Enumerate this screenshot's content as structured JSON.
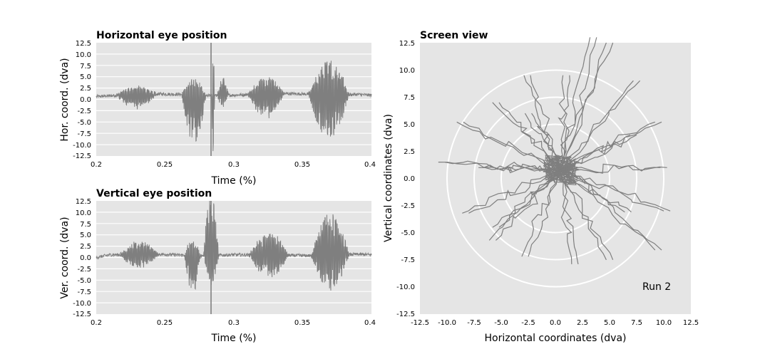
{
  "chart_data": [
    {
      "id": "horizontal",
      "type": "line",
      "title": "Horizontal eye position",
      "xlabel": "Time (%)",
      "ylabel": "Hor. coord. (dva)",
      "xlim": [
        0.2,
        0.4
      ],
      "ylim": [
        -12.5,
        12.5
      ],
      "xticks": [
        "0.2",
        "0.25",
        "0.3",
        "0.35",
        "0.4"
      ],
      "yticks": [
        "12.5",
        "10.0",
        "7.5",
        "5.0",
        "2.5",
        "0.0",
        "-2.5",
        "-5.0",
        "-7.5",
        "-10.0",
        "-12.5"
      ],
      "grid": "horizontal",
      "line_color": "#7f7f7f",
      "bg_color": "#e5e5e5",
      "baseline": [
        [
          0.2,
          0.6
        ],
        [
          0.215,
          0.9
        ],
        [
          0.245,
          1.2
        ],
        [
          0.26,
          1.1
        ],
        [
          0.285,
          0.8
        ],
        [
          0.305,
          1.0
        ],
        [
          0.33,
          1.3
        ],
        [
          0.35,
          1.2
        ],
        [
          0.37,
          0.9
        ],
        [
          0.39,
          1.1
        ],
        [
          0.4,
          0.9
        ]
      ],
      "bursts": [
        {
          "t0": 0.214,
          "t1": 0.244,
          "amp": 2.5,
          "skew": -0.6
        },
        {
          "t0": 0.262,
          "t1": 0.28,
          "amp": 7.5,
          "skew": -1.0
        },
        {
          "t0": 0.284,
          "t1": 0.286,
          "amp": 12.5,
          "skew": 0
        },
        {
          "t0": 0.288,
          "t1": 0.296,
          "amp": 3.5,
          "skew": 0.3
        },
        {
          "t0": 0.31,
          "t1": 0.337,
          "amp": 4.5,
          "skew": -0.4
        },
        {
          "t0": 0.354,
          "t1": 0.384,
          "amp": 9.0,
          "skew": -0.2
        }
      ]
    },
    {
      "id": "vertical",
      "type": "line",
      "title": "Vertical eye position",
      "xlabel": "Time (%)",
      "ylabel": "Ver. coord. (dva)",
      "xlim": [
        0.2,
        0.4
      ],
      "ylim": [
        -12.5,
        12.5
      ],
      "xticks": [
        "0.2",
        "0.25",
        "0.3",
        "0.35",
        "0.4"
      ],
      "yticks": [
        "12.5",
        "10.0",
        "7.5",
        "5.0",
        "2.5",
        "0.0",
        "-2.5",
        "-5.0",
        "-7.5",
        "-10.0",
        "-12.5"
      ],
      "grid": "horizontal",
      "line_color": "#7f7f7f",
      "bg_color": "#e5e5e5",
      "baseline": [
        [
          0.2,
          0.0
        ],
        [
          0.21,
          0.6
        ],
        [
          0.25,
          0.7
        ],
        [
          0.27,
          0.4
        ],
        [
          0.3,
          0.6
        ],
        [
          0.33,
          0.5
        ],
        [
          0.36,
          0.4
        ],
        [
          0.39,
          0.7
        ],
        [
          0.4,
          0.6
        ]
      ],
      "bursts": [
        {
          "t0": 0.217,
          "t1": 0.245,
          "amp": 3.0,
          "skew": 0.0
        },
        {
          "t0": 0.264,
          "t1": 0.276,
          "amp": 6.0,
          "skew": -0.8
        },
        {
          "t0": 0.278,
          "t1": 0.289,
          "amp": 11.0,
          "skew": 0.8
        },
        {
          "t0": 0.311,
          "t1": 0.34,
          "amp": 5.0,
          "skew": 0.0
        },
        {
          "t0": 0.356,
          "t1": 0.384,
          "amp": 8.5,
          "skew": 0.2
        }
      ]
    },
    {
      "id": "screen",
      "type": "scatter",
      "title": "Screen view",
      "xlabel": "Horizontal coordinates (dva)",
      "ylabel": "Vertical coordinates (dva)",
      "xlim": [
        -12.5,
        12.5
      ],
      "ylim": [
        -12.5,
        12.5
      ],
      "xticks": [
        "-12.5",
        "-10.0",
        "-7.5",
        "-5.0",
        "-2.5",
        "0.0",
        "2.5",
        "5.0",
        "7.5",
        "10.0",
        "12.5"
      ],
      "yticks": [
        "12.5",
        "10.0",
        "7.5",
        "5.0",
        "2.5",
        "0.0",
        "-2.5",
        "-5.0",
        "-7.5",
        "-10.0",
        "-12.5"
      ],
      "grid": "off",
      "line_color": "#7f7f7f",
      "bg_color": "#e5e5e5",
      "circle_color": "#ffffff",
      "circles_radius": [
        5,
        7.5,
        10
      ],
      "center": [
        0.5,
        0.8
      ],
      "annotation": "Run 2",
      "targets": [
        [
          -8.8,
          5.2
        ],
        [
          -10.5,
          1.5
        ],
        [
          -6.8,
          1.0
        ],
        [
          -8.3,
          -3.2
        ],
        [
          -5.8,
          -5.7
        ],
        [
          -2.8,
          -7.2
        ],
        [
          -2.6,
          9.5
        ],
        [
          -5.5,
          7.0
        ],
        [
          -2.5,
          6.0
        ],
        [
          1.0,
          9.5
        ],
        [
          3.5,
          13.0
        ],
        [
          5.0,
          12.5
        ],
        [
          7.5,
          9.0
        ],
        [
          9.5,
          5.2
        ],
        [
          7.2,
          4.0
        ],
        [
          10.0,
          1.0
        ],
        [
          10.3,
          -3.0
        ],
        [
          9.5,
          -6.6
        ],
        [
          6.7,
          -3.1
        ],
        [
          5.0,
          -7.5
        ],
        [
          1.8,
          -7.9
        ],
        [
          -5.5,
          -4.5
        ]
      ]
    }
  ]
}
